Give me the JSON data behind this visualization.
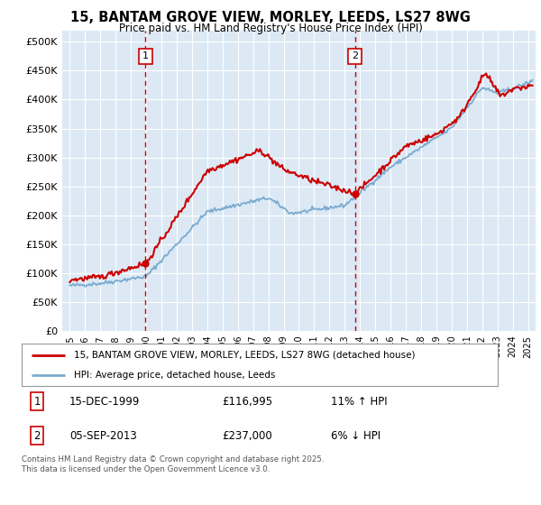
{
  "title": "15, BANTAM GROVE VIEW, MORLEY, LEEDS, LS27 8WG",
  "subtitle": "Price paid vs. HM Land Registry's House Price Index (HPI)",
  "background_color": "#dce9f5",
  "plot_bg_color": "#dce9f5",
  "grid_color": "#ffffff",
  "sale1_date_x": 1999.96,
  "sale1_price": 116995,
  "sale2_date_x": 2013.68,
  "sale2_price": 237000,
  "ylim": [
    0,
    520000
  ],
  "xlim": [
    1994.5,
    2025.5
  ],
  "yticks": [
    0,
    50000,
    100000,
    150000,
    200000,
    250000,
    300000,
    350000,
    400000,
    450000,
    500000
  ],
  "ytick_labels": [
    "£0",
    "£50K",
    "£100K",
    "£150K",
    "£200K",
    "£250K",
    "£300K",
    "£350K",
    "£400K",
    "£450K",
    "£500K"
  ],
  "xticks": [
    1995,
    1996,
    1997,
    1998,
    1999,
    2000,
    2001,
    2002,
    2003,
    2004,
    2005,
    2006,
    2007,
    2008,
    2009,
    2010,
    2011,
    2012,
    2013,
    2014,
    2015,
    2016,
    2017,
    2018,
    2019,
    2020,
    2021,
    2022,
    2023,
    2024,
    2025
  ],
  "legend_label_red": "15, BANTAM GROVE VIEW, MORLEY, LEEDS, LS27 8WG (detached house)",
  "legend_label_blue": "HPI: Average price, detached house, Leeds",
  "note1_date": "15-DEC-1999",
  "note1_price": "£116,995",
  "note1_hpi": "11% ↑ HPI",
  "note2_date": "05-SEP-2013",
  "note2_price": "£237,000",
  "note2_hpi": "6% ↓ HPI",
  "footer": "Contains HM Land Registry data © Crown copyright and database right 2025.\nThis data is licensed under the Open Government Licence v3.0.",
  "red_color": "#cc0000",
  "blue_color": "#7aabcf",
  "dashed_red": "#cc0000"
}
